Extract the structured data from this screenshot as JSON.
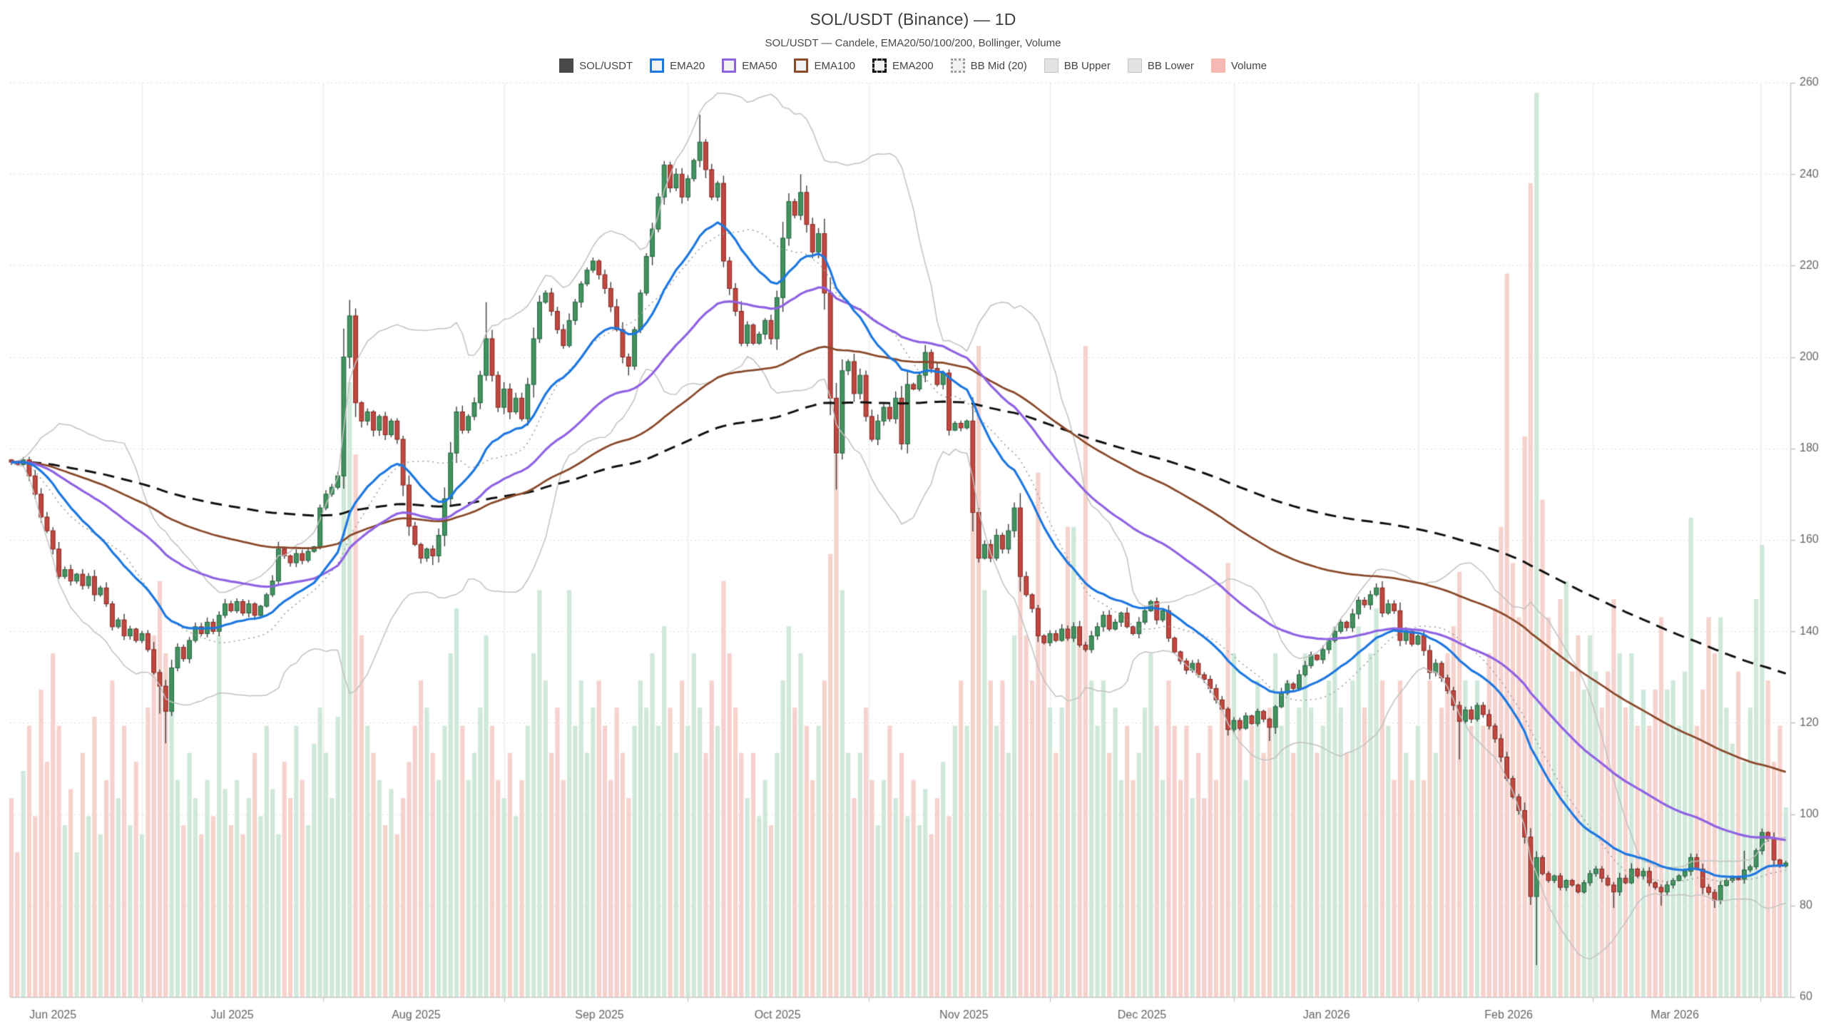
{
  "header": {
    "title": "SOL/USDT (Binance) — 1D",
    "subtitle": "SOL/USDT — Candele, EMA20/50/100/200, Bollinger, Volume"
  },
  "legend": {
    "items": [
      {
        "label": "SOL/USDT",
        "type": "fill",
        "color": "#4a4a4a"
      },
      {
        "label": "EMA20",
        "type": "stroke",
        "color": "#1e78e0"
      },
      {
        "label": "EMA50",
        "type": "stroke",
        "color": "#8f63e3"
      },
      {
        "label": "EMA100",
        "type": "stroke",
        "color": "#8a4a2b"
      },
      {
        "label": "EMA200",
        "type": "dash",
        "color": "#111111"
      },
      {
        "label": "BB Mid (20)",
        "type": "dot",
        "color": "#9a9a9a"
      },
      {
        "label": "BB Upper",
        "type": "fill-light",
        "color": "#e2e2e2"
      },
      {
        "label": "BB Lower",
        "type": "fill-light",
        "color": "#e2e2e2"
      },
      {
        "label": "Volume",
        "type": "fill",
        "color": "#f6b8b2"
      }
    ]
  },
  "axes": {
    "y": {
      "min": 60,
      "max": 260,
      "ticks": [
        260,
        240,
        220,
        200,
        180,
        160,
        140,
        120,
        100,
        80,
        60
      ]
    },
    "x": {
      "labels": [
        {
          "text": "Jun 2025",
          "index": 7
        },
        {
          "text": "Jul 2025",
          "index": 37.2
        },
        {
          "text": "Aug 2025",
          "index": 68.2
        },
        {
          "text": "Sep 2025",
          "index": 99.1
        },
        {
          "text": "Oct 2025",
          "index": 129.1
        },
        {
          "text": "Nov 2025",
          "index": 160.5
        },
        {
          "text": "Dec 2025",
          "index": 190.5
        },
        {
          "text": "Jan 2026",
          "index": 221.6
        },
        {
          "text": "Feb 2026",
          "index": 252.3
        },
        {
          "text": "Mar 2026",
          "index": 280.3
        }
      ],
      "gridline_indices": [
        22,
        52.5,
        83,
        114,
        144.5,
        175,
        206,
        237,
        266.5,
        294.7
      ]
    }
  },
  "chart_data": {
    "type": "candlestick",
    "title": "SOL/USDT (Binance) — 1D",
    "symbol": "SOL/USDT",
    "exchange": "Binance",
    "timeframe": "1D",
    "y_range": [
      60,
      260
    ],
    "x_span_months": [
      "Jun 2025",
      "Mar 2026"
    ],
    "open_first": 177.5,
    "closes": [
      177,
      176.5,
      177.5,
      174,
      170,
      165,
      162,
      158,
      152,
      153.5,
      151,
      152.5,
      150,
      152,
      148,
      149.5,
      146,
      141,
      142.5,
      139,
      140.5,
      138,
      139.5,
      136,
      131,
      128,
      122.5,
      132,
      136.5,
      134,
      138,
      141,
      139.5,
      142,
      140,
      143.5,
      146,
      144.5,
      146.5,
      144,
      146,
      143.5,
      145.5,
      148,
      151,
      158,
      156.5,
      155,
      157,
      155.5,
      157.5,
      158.5,
      167,
      170,
      171.5,
      174,
      200,
      209,
      190,
      186,
      188,
      184,
      187,
      183,
      186,
      182,
      172,
      163,
      159,
      156,
      158,
      156.5,
      161,
      169,
      179,
      188,
      184,
      187,
      190,
      196,
      204,
      196,
      189,
      193,
      188,
      191,
      186.5,
      194,
      204,
      212,
      214,
      210,
      206,
      202.5,
      208,
      212,
      216,
      219,
      221,
      218,
      215,
      211,
      206,
      200,
      198,
      206,
      214,
      222,
      228,
      235,
      242,
      237,
      240,
      235,
      239,
      243,
      247,
      241,
      235,
      238,
      221,
      215,
      210,
      203,
      207,
      203,
      205,
      208,
      204,
      213,
      226,
      234,
      231,
      236,
      229,
      223,
      227,
      214,
      191,
      179,
      197,
      199,
      192,
      196,
      187,
      182,
      186,
      189,
      186.5,
      191,
      181,
      194,
      193,
      196,
      201,
      197.5,
      194,
      196.5,
      184,
      185.5,
      184.5,
      186,
      166,
      156,
      159,
      156,
      161,
      158,
      162,
      167,
      152,
      148,
      145,
      139,
      137.5,
      139.5,
      138,
      140.5,
      138.5,
      141,
      137,
      136,
      139,
      141,
      143.5,
      140.5,
      142,
      144,
      141,
      139.5,
      142,
      144.5,
      146.5,
      142.5,
      144.5,
      138.5,
      135.5,
      133.5,
      131.5,
      133,
      130.5,
      129.5,
      127.5,
      125,
      123,
      118.5,
      120.5,
      118.8,
      121.5,
      119.8,
      122.5,
      120.8,
      119,
      123.5,
      126.5,
      128.5,
      127.5,
      130.5,
      132.5,
      134.8,
      133.8,
      136,
      138,
      140,
      142,
      140.8,
      143.8,
      146.8,
      145.8,
      148,
      149.5,
      144,
      146,
      144.5,
      138,
      140,
      137.2,
      139,
      135.8,
      131,
      133,
      129.8,
      127,
      123.8,
      120.3,
      122.8,
      120.8,
      123.8,
      121.8,
      119.3,
      116.5,
      112.5,
      107.8,
      103.8,
      100.8,
      95,
      82,
      90.5,
      87,
      85.5,
      86.5,
      84,
      85.5,
      84.5,
      83,
      85,
      87,
      88,
      86,
      84.5,
      83,
      86,
      85,
      88,
      86.5,
      87.5,
      85,
      84,
      83,
      84.5,
      85.5,
      86.5,
      87.5,
      90.5,
      88,
      84,
      82.9,
      81.2,
      84.4,
      85.5,
      86,
      85.8,
      87.8,
      88.5,
      92,
      96,
      94.6,
      90,
      88.7,
      89.3
    ],
    "volumes": [
      0.22,
      0.16,
      0.25,
      0.3,
      0.2,
      0.34,
      0.26,
      0.38,
      0.3,
      0.19,
      0.23,
      0.16,
      0.27,
      0.2,
      0.31,
      0.18,
      0.24,
      0.35,
      0.22,
      0.3,
      0.19,
      0.26,
      0.18,
      0.32,
      0.4,
      0.46,
      0.38,
      0.35,
      0.24,
      0.19,
      0.27,
      0.22,
      0.18,
      0.24,
      0.2,
      0.4,
      0.23,
      0.19,
      0.24,
      0.18,
      0.22,
      0.27,
      0.2,
      0.3,
      0.23,
      0.18,
      0.26,
      0.22,
      0.3,
      0.24,
      0.19,
      0.28,
      0.32,
      0.27,
      0.22,
      0.31,
      0.62,
      0.68,
      0.6,
      0.4,
      0.3,
      0.27,
      0.24,
      0.19,
      0.23,
      0.18,
      0.22,
      0.26,
      0.3,
      0.35,
      0.32,
      0.27,
      0.24,
      0.3,
      0.38,
      0.43,
      0.3,
      0.24,
      0.27,
      0.32,
      0.4,
      0.3,
      0.24,
      0.22,
      0.27,
      0.2,
      0.24,
      0.3,
      0.38,
      0.45,
      0.35,
      0.27,
      0.32,
      0.24,
      0.45,
      0.3,
      0.35,
      0.27,
      0.32,
      0.35,
      0.3,
      0.24,
      0.32,
      0.27,
      0.22,
      0.3,
      0.35,
      0.32,
      0.38,
      0.3,
      0.41,
      0.32,
      0.27,
      0.35,
      0.3,
      0.38,
      0.32,
      0.27,
      0.35,
      0.3,
      0.46,
      0.38,
      0.32,
      0.27,
      0.22,
      0.27,
      0.2,
      0.24,
      0.19,
      0.27,
      0.35,
      0.41,
      0.32,
      0.38,
      0.3,
      0.24,
      0.3,
      0.35,
      0.49,
      0.6,
      0.45,
      0.27,
      0.22,
      0.27,
      0.32,
      0.24,
      0.19,
      0.24,
      0.3,
      0.22,
      0.27,
      0.2,
      0.24,
      0.19,
      0.23,
      0.18,
      0.22,
      0.26,
      0.2,
      0.3,
      0.35,
      0.3,
      0.55,
      0.72,
      0.45,
      0.35,
      0.3,
      0.35,
      0.27,
      0.4,
      0.5,
      0.4,
      0.35,
      0.58,
      0.4,
      0.32,
      0.27,
      0.32,
      0.52,
      0.52,
      0.4,
      0.72,
      0.35,
      0.3,
      0.35,
      0.27,
      0.32,
      0.24,
      0.3,
      0.24,
      0.27,
      0.32,
      0.38,
      0.3,
      0.24,
      0.35,
      0.3,
      0.24,
      0.3,
      0.22,
      0.27,
      0.22,
      0.3,
      0.24,
      0.32,
      0.48,
      0.38,
      0.3,
      0.24,
      0.3,
      0.35,
      0.27,
      0.32,
      0.38,
      0.3,
      0.35,
      0.27,
      0.32,
      0.38,
      0.32,
      0.27,
      0.3,
      0.35,
      0.41,
      0.32,
      0.27,
      0.35,
      0.41,
      0.32,
      0.38,
      0.43,
      0.35,
      0.3,
      0.24,
      0.35,
      0.27,
      0.24,
      0.3,
      0.24,
      0.35,
      0.27,
      0.32,
      0.38,
      0.41,
      0.47,
      0.35,
      0.3,
      0.35,
      0.3,
      0.38,
      0.43,
      0.52,
      0.8,
      0.48,
      0.42,
      0.62,
      0.9,
      1.0,
      0.55,
      0.42,
      0.38,
      0.44,
      0.46,
      0.36,
      0.4,
      0.34,
      0.4,
      0.36,
      0.32,
      0.36,
      0.44,
      0.38,
      0.32,
      0.38,
      0.3,
      0.34,
      0.3,
      0.34,
      0.42,
      0.34,
      0.35,
      0.3,
      0.36,
      0.53,
      0.3,
      0.34,
      0.42,
      0.38,
      0.42,
      0.32,
      0.28,
      0.36,
      0.26,
      0.32,
      0.44,
      0.5,
      0.35,
      0.26,
      0.3,
      0.21
    ],
    "wick_high": {
      "57": 212.5,
      "80": 212,
      "116": 253,
      "133": 240,
      "230": 150.5,
      "292": 92
    },
    "wick_low": {
      "25": 122,
      "26": 115.5,
      "71": 154.5,
      "104": 196,
      "139": 171,
      "212": 116,
      "244": 112,
      "257": 67,
      "270": 79.5,
      "278": 80,
      "287": 79.5
    },
    "indicators": {
      "ema_periods": [
        20,
        50,
        100,
        200
      ],
      "bollinger": {
        "period": 20,
        "mult": 2
      }
    },
    "colors": {
      "background": "#ffffff",
      "candle_up": "#43925f",
      "candle_up_border": "#266b44",
      "candle_down": "#bf4840",
      "candle_down_border": "#8d2c26",
      "wick": "#3c3c3c",
      "volume_up": "#cfe8d9",
      "volume_down": "#f6d2cd",
      "ema20": "#1e78e0",
      "ema50": "#8f63e3",
      "ema100": "#8a4a2b",
      "ema200": "#111111",
      "bb": "#c2c2c2",
      "bb_mid": "#9a9a9a",
      "grid": "#dcdcdc",
      "grid_vertical": "#ededed",
      "axis_line": "#c9c9c9",
      "tick": "#bbbbbb",
      "axis_text": "#666666"
    }
  }
}
